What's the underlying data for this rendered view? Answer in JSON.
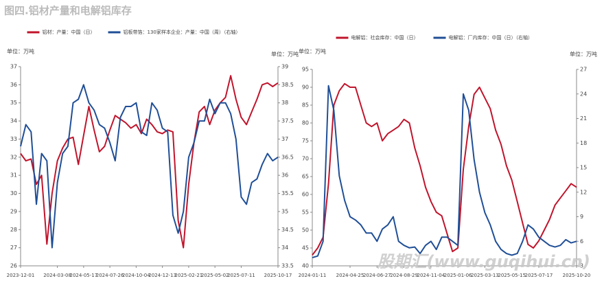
{
  "title": "图四.铝材产量和电解铝库存",
  "watermark": "股期汇(www.guqihui.cn)",
  "chart_data": [
    {
      "type": "line",
      "y_unit_label": "单位：万吨",
      "y2_unit_label": "单位：万吨",
      "categories": [
        "2023-12-01",
        null,
        null,
        null,
        null,
        null,
        null,
        "2024-03-08",
        null,
        null,
        null,
        null,
        "2024-05-17",
        null,
        null,
        null,
        null,
        "2024-07-26",
        null,
        null,
        null,
        null,
        "2024-10-04",
        null,
        null,
        null,
        null,
        "2024-12-13",
        null,
        null,
        null,
        null,
        "2025-02-21",
        null,
        null,
        null,
        null,
        "2025-05-02",
        null,
        null,
        null,
        null,
        "2025-07-11",
        null,
        null,
        null,
        null,
        null,
        null,
        "2025-10-17"
      ],
      "ylim": [
        26,
        37
      ],
      "yticks": [
        26,
        27,
        28,
        29,
        30,
        31,
        32,
        33,
        34,
        35,
        36,
        37
      ],
      "y2lim": [
        33.5,
        39
      ],
      "y2ticks": [
        33.5,
        34,
        34.5,
        35,
        35.5,
        36,
        36.5,
        37,
        37.5,
        38,
        38.5,
        39
      ],
      "series": [
        {
          "name": "铝材：产量：中国（日）",
          "color": "#c0142b",
          "values": [
            32.2,
            31.8,
            31.9,
            30.5,
            31.0,
            27.2,
            30.0,
            31.8,
            32.5,
            33.0,
            33.1,
            31.6,
            33.2,
            34.8,
            33.5,
            32.3,
            32.6,
            33.5,
            34.3,
            34.1,
            33.9,
            33.6,
            33.8,
            33.3,
            34.1,
            33.8,
            33.4,
            33.3,
            33.5,
            33.4,
            28.5,
            27.0,
            30.5,
            32.8,
            34.5,
            34.8,
            33.8,
            34.6,
            35.0,
            35.3,
            36.5,
            35.2,
            34.2,
            33.8,
            34.5,
            35.2,
            36.0,
            36.1,
            35.9,
            36.1
          ]
        },
        {
          "name": "铝板带箔：130家样本企业：产量：中国（周）（右轴）",
          "color": "#1f4e96",
          "axis": "y2",
          "values": [
            36.8,
            37.4,
            37.2,
            35.2,
            36.6,
            36.4,
            34.0,
            35.8,
            36.6,
            36.8,
            38.0,
            38.1,
            38.5,
            38.0,
            37.8,
            37.4,
            37.3,
            36.9,
            36.4,
            37.6,
            37.9,
            37.9,
            38.0,
            37.2,
            37.1,
            38.0,
            37.8,
            37.3,
            37.2,
            34.9,
            34.4,
            35.0,
            36.5,
            36.9,
            37.5,
            37.5,
            38.1,
            37.7,
            38.0,
            38.0,
            37.7,
            37.0,
            35.4,
            35.2,
            35.8,
            35.9,
            36.3,
            36.6,
            36.4,
            36.5
          ]
        }
      ]
    },
    {
      "type": "line",
      "y_unit_label": "单位：万吨",
      "y2_unit_label": "单位：万吨",
      "categories": [
        "2024-01-11",
        null,
        null,
        null,
        null,
        null,
        null,
        "2024-04-25",
        null,
        null,
        null,
        null,
        "2024-06-27",
        null,
        null,
        null,
        null,
        "2024-08-29",
        null,
        null,
        null,
        null,
        "2024-11-04",
        null,
        null,
        null,
        null,
        "2025-01-06",
        null,
        null,
        null,
        null,
        "2025-03-13",
        null,
        null,
        null,
        null,
        "2025-05-15",
        null,
        null,
        null,
        null,
        "2025-07-17",
        null,
        null,
        null,
        null,
        null,
        null,
        "2025-10-20"
      ],
      "ylim": [
        40,
        95
      ],
      "yticks": [
        40,
        45,
        50,
        55,
        60,
        65,
        70,
        75,
        80,
        85,
        90,
        95
      ],
      "y2lim": [
        3,
        27
      ],
      "y2ticks": [
        3,
        6,
        9,
        12,
        15,
        18,
        21,
        24,
        27
      ],
      "series": [
        {
          "name": "电解铝：社会库存：中国（日）",
          "color": "#c0142b",
          "values": [
            43,
            45,
            48,
            63,
            85,
            89,
            91,
            90,
            90,
            85,
            80,
            79,
            80,
            75,
            77,
            78,
            79,
            81,
            80,
            73,
            68,
            62,
            58,
            55,
            54,
            49,
            44,
            45,
            67,
            79,
            88,
            90,
            87,
            84,
            78,
            74,
            68,
            64,
            58,
            52,
            46,
            45,
            47,
            50,
            53,
            57,
            59,
            61,
            63,
            62
          ]
        },
        {
          "name": "电解铝：厂内库存：中国（日）（右轴）",
          "color": "#1f4e96",
          "axis": "y2",
          "values": [
            4,
            4.2,
            6,
            25,
            22,
            14,
            11,
            9,
            8.6,
            8,
            7,
            7,
            6,
            7.5,
            8,
            9,
            6,
            5.5,
            5.2,
            5.3,
            4.5,
            5.5,
            6,
            5,
            6.5,
            6.5,
            6,
            5.5,
            24,
            22,
            16,
            12,
            9.5,
            8,
            6,
            5,
            4.5,
            4.3,
            4.5,
            6,
            8,
            7.5,
            6.5,
            6,
            5.5,
            5.3,
            5.5,
            6.2,
            5.8,
            6
          ]
        }
      ]
    }
  ]
}
